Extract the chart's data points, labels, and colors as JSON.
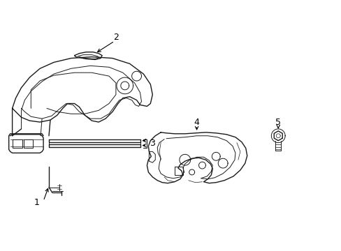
{
  "background_color": "#ffffff",
  "line_color": "#1a1a1a",
  "label_color": "#000000",
  "figsize": [
    4.89,
    3.6
  ],
  "dpi": 100,
  "lw_main": 1.0,
  "lw_inner": 0.7,
  "lw_thin": 0.5
}
